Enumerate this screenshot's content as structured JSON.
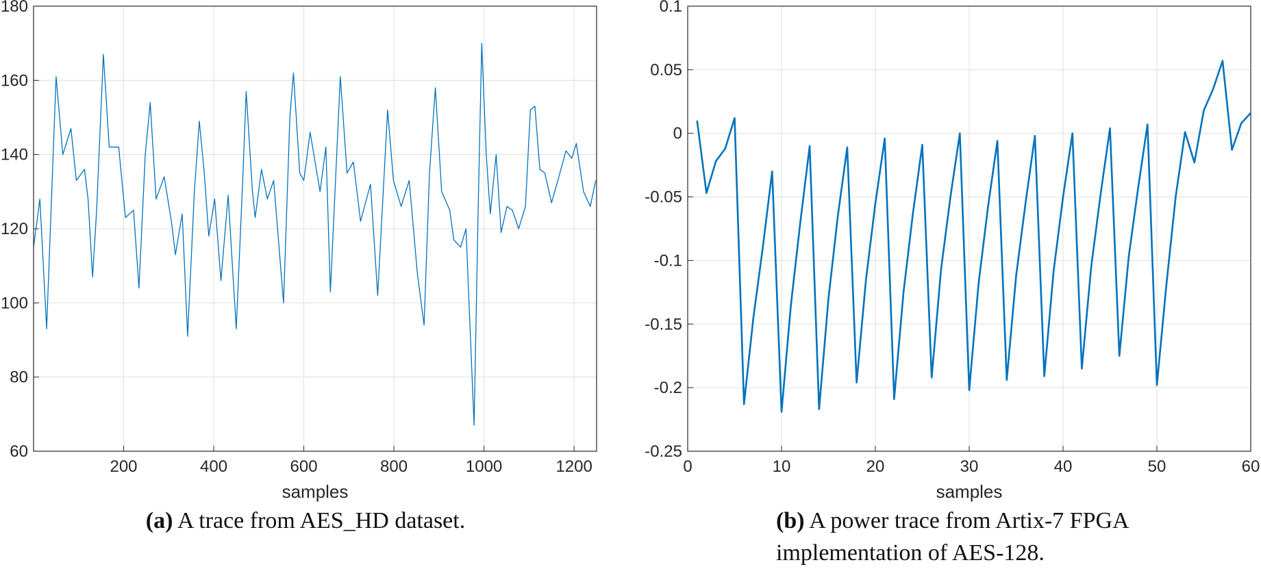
{
  "chart_data": [
    {
      "type": "line",
      "xlabel": "samples",
      "caption_label": "(a)",
      "caption": "A trace from AES_HD dataset.",
      "xlim": [
        0,
        1250
      ],
      "xticks": [
        200,
        400,
        600,
        800,
        1000,
        1200
      ],
      "ylim": [
        60,
        180
      ],
      "yticks": [
        60,
        80,
        100,
        120,
        140,
        160,
        180
      ],
      "grid": true,
      "series": [
        {
          "color": "#0072bd",
          "x": [
            0,
            14,
            29,
            50,
            65,
            83,
            95,
            113,
            121,
            131,
            140,
            155,
            168,
            189,
            204,
            222,
            234,
            248,
            259,
            272,
            290,
            306,
            315,
            330,
            342,
            357,
            368,
            379,
            389,
            402,
            416,
            432,
            450,
            465,
            472,
            486,
            492,
            506,
            519,
            533,
            555,
            569,
            577,
            591,
            600,
            614,
            636,
            649,
            659,
            681,
            696,
            710,
            726,
            748,
            764,
            786,
            799,
            816,
            834,
            852,
            867,
            879,
            892,
            906,
            924,
            933,
            948,
            960,
            978,
            987,
            995,
            1005,
            1014,
            1027,
            1038,
            1051,
            1063,
            1077,
            1092,
            1103,
            1113,
            1124,
            1135,
            1150,
            1164,
            1182,
            1195,
            1205,
            1221,
            1236,
            1248
          ],
          "values": [
            115,
            128,
            93,
            161,
            140,
            147,
            133,
            136,
            128,
            107,
            125,
            167,
            142,
            142,
            123,
            125,
            104,
            140,
            154,
            128,
            134,
            122,
            113,
            124,
            91,
            130,
            149,
            135,
            118,
            128,
            106,
            129,
            93,
            135,
            157,
            130,
            123,
            136,
            128,
            133,
            100,
            150,
            162,
            135,
            133,
            146,
            130,
            142,
            103,
            161,
            135,
            138,
            122,
            132,
            102,
            152,
            133,
            126,
            133,
            108,
            94,
            135,
            158,
            130,
            125,
            117,
            115,
            120,
            67,
            125,
            170,
            140,
            124,
            140,
            119,
            126,
            125,
            120,
            126,
            152,
            153,
            136,
            135,
            127,
            133,
            141,
            139,
            143,
            130,
            126,
            133
          ]
        }
      ]
    },
    {
      "type": "line",
      "xlabel": "samples",
      "caption_label": "(b)",
      "caption": "A power trace from Artix-7 FPGA implementation of AES-128.",
      "xlim": [
        0,
        60
      ],
      "xticks": [
        0,
        10,
        20,
        30,
        40,
        50,
        60
      ],
      "ylim": [
        -0.25,
        0.1
      ],
      "yticks": [
        -0.25,
        -0.2,
        -0.15,
        -0.1,
        -0.05,
        0,
        0.05,
        0.1
      ],
      "grid": true,
      "series": [
        {
          "color": "#0072bd",
          "x": [
            1,
            2,
            3,
            4,
            5,
            6,
            7,
            8,
            9,
            10,
            11,
            12,
            13,
            14,
            15,
            16,
            17,
            18,
            19,
            20,
            21,
            22,
            23,
            24,
            25,
            26,
            27,
            28,
            29,
            30,
            31,
            32,
            33,
            34,
            35,
            36,
            37,
            38,
            39,
            40,
            41,
            42,
            43,
            44,
            45,
            46,
            47,
            48,
            49,
            50,
            51,
            52,
            53,
            54,
            55,
            56,
            57,
            58,
            59,
            60
          ],
          "values": [
            0.01,
            -0.047,
            -0.022,
            -0.012,
            0.012,
            -0.213,
            -0.145,
            -0.09,
            -0.03,
            -0.219,
            -0.135,
            -0.07,
            -0.01,
            -0.217,
            -0.13,
            -0.065,
            -0.011,
            -0.196,
            -0.115,
            -0.055,
            -0.004,
            -0.209,
            -0.125,
            -0.063,
            -0.009,
            -0.192,
            -0.107,
            -0.05,
            0,
            -0.202,
            -0.118,
            -0.058,
            -0.006,
            -0.194,
            -0.112,
            -0.055,
            -0.002,
            -0.191,
            -0.108,
            -0.05,
            0,
            -0.185,
            -0.105,
            -0.048,
            0.004,
            -0.175,
            -0.097,
            -0.043,
            0.007,
            -0.198,
            -0.12,
            -0.05,
            0.001,
            -0.023,
            0.018,
            0.035,
            0.057,
            -0.013,
            0.008,
            0.016
          ]
        }
      ]
    }
  ]
}
